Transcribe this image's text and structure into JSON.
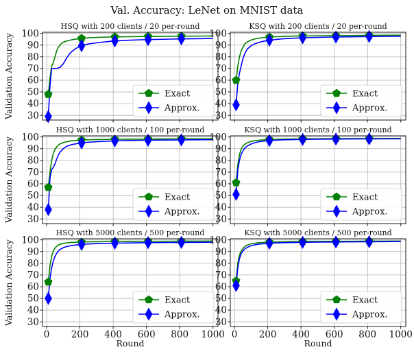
{
  "figure": {
    "title": "Val. Accuracy: LeNet on MNIST data"
  },
  "chart_data": [
    {
      "type": "line",
      "title": "HSQ with 200 clients / 20 per-round",
      "xlabel": "",
      "ylabel": "Validation Accuracy",
      "xlim": [
        -25,
        1030
      ],
      "ylim": [
        26,
        101
      ],
      "xticks": [],
      "yticks": [
        30,
        40,
        50,
        60,
        70,
        80,
        90,
        100
      ],
      "grid": true,
      "legend": "lower-right",
      "series": [
        {
          "name": "Exact",
          "color": "#008000",
          "marker": "pentagon",
          "markers_at": [
            10,
            210,
            410,
            610,
            810
          ],
          "x": [
            10,
            20,
            30,
            40,
            50,
            60,
            70,
            80,
            90,
            100,
            120,
            140,
            160,
            180,
            210,
            250,
            300,
            400,
            500,
            600,
            700,
            800,
            900,
            1000
          ],
          "y": [
            48,
            62,
            72,
            75,
            80,
            85,
            88,
            90,
            91.5,
            92.5,
            93.5,
            94.2,
            94.8,
            95.2,
            95.8,
            96.2,
            96.6,
            97.0,
            97.2,
            97.4,
            97.5,
            97.6,
            97.7,
            97.8
          ]
        },
        {
          "name": "Approx.",
          "color": "#0000ff",
          "marker": "diamond",
          "markers_at": [
            10,
            210,
            410,
            610,
            810
          ],
          "x": [
            10,
            20,
            30,
            40,
            50,
            60,
            70,
            80,
            100,
            120,
            140,
            160,
            180,
            210,
            250,
            300,
            400,
            500,
            600,
            700,
            800,
            900,
            1000
          ],
          "y": [
            29,
            55,
            70,
            70,
            70,
            70,
            70.5,
            71,
            74,
            79,
            83,
            85.5,
            87.5,
            89.5,
            91,
            92,
            93.5,
            94.2,
            94.7,
            95.0,
            95.3,
            95.5,
            95.7
          ]
        }
      ]
    },
    {
      "type": "line",
      "title": "KSQ with 200 clients / 20 per-round",
      "xlabel": "",
      "ylabel": "",
      "xlim": [
        -25,
        1030
      ],
      "ylim": [
        26,
        101
      ],
      "xticks": [],
      "yticks": [
        30,
        40,
        50,
        60,
        70,
        80,
        90,
        100
      ],
      "grid": true,
      "legend": "lower-right",
      "series": [
        {
          "name": "Exact",
          "color": "#008000",
          "marker": "pentagon",
          "markers_at": [
            10,
            210,
            410,
            610,
            810
          ],
          "x": [
            10,
            20,
            30,
            40,
            50,
            60,
            70,
            80,
            100,
            120,
            150,
            200,
            250,
            300,
            400,
            500,
            600,
            700,
            800,
            900,
            1000
          ],
          "y": [
            60,
            72,
            80,
            85,
            88,
            90.5,
            92,
            93,
            94.3,
            95.2,
            96.0,
            96.8,
            97.2,
            97.5,
            97.8,
            98.0,
            98.1,
            98.2,
            98.3,
            98.4,
            98.5
          ]
        },
        {
          "name": "Approx.",
          "color": "#0000ff",
          "marker": "diamond",
          "markers_at": [
            10,
            210,
            410,
            610,
            810
          ],
          "x": [
            10,
            20,
            30,
            40,
            50,
            60,
            70,
            80,
            100,
            120,
            150,
            200,
            250,
            300,
            400,
            500,
            600,
            700,
            800,
            900,
            1000
          ],
          "y": [
            39,
            58,
            66,
            72,
            78,
            82,
            85,
            87,
            89.5,
            91,
            92.5,
            94,
            94.8,
            95.5,
            96.2,
            96.6,
            96.9,
            97.1,
            97.3,
            97.5,
            97.6
          ]
        }
      ]
    },
    {
      "type": "line",
      "title": "HSQ with 1000 clients / 100 per-round",
      "xlabel": "",
      "ylabel": "Validation Accuracy",
      "xlim": [
        -25,
        1030
      ],
      "ylim": [
        26,
        101
      ],
      "xticks": [],
      "yticks": [
        30,
        40,
        50,
        60,
        70,
        80,
        90,
        100
      ],
      "grid": true,
      "legend": "lower-right",
      "series": [
        {
          "name": "Exact",
          "color": "#008000",
          "marker": "pentagon",
          "markers_at": [
            10,
            210,
            410,
            610,
            810
          ],
          "x": [
            10,
            20,
            30,
            40,
            50,
            60,
            70,
            80,
            100,
            120,
            150,
            200,
            250,
            300,
            400,
            500,
            600,
            700,
            800,
            900,
            1000
          ],
          "y": [
            57,
            70,
            80,
            86,
            89.5,
            91.5,
            93,
            94,
            95.2,
            96,
            96.7,
            97.3,
            97.6,
            97.8,
            98.0,
            98.1,
            98.2,
            98.3,
            98.4,
            98.4,
            98.5
          ]
        },
        {
          "name": "Approx.",
          "color": "#0000ff",
          "marker": "diamond",
          "markers_at": [
            10,
            210,
            410,
            610,
            810
          ],
          "x": [
            10,
            20,
            30,
            40,
            50,
            60,
            70,
            80,
            100,
            120,
            150,
            200,
            250,
            300,
            400,
            500,
            600,
            700,
            800,
            900,
            1000
          ],
          "y": [
            38,
            65,
            72,
            74,
            77,
            81,
            84.5,
            87,
            90,
            92,
            93.5,
            94.8,
            95.5,
            96,
            96.6,
            97,
            97.2,
            97.4,
            97.5,
            97.6,
            97.7
          ]
        }
      ]
    },
    {
      "type": "line",
      "title": "KSQ with 1000 clients / 100 per-round",
      "xlabel": "",
      "ylabel": "",
      "xlim": [
        -25,
        1030
      ],
      "ylim": [
        26,
        101
      ],
      "xticks": [],
      "yticks": [
        30,
        40,
        50,
        60,
        70,
        80,
        90,
        100
      ],
      "grid": true,
      "legend": "lower-right",
      "series": [
        {
          "name": "Exact",
          "color": "#008000",
          "marker": "pentagon",
          "markers_at": [
            10,
            210,
            410,
            610,
            810
          ],
          "x": [
            10,
            20,
            30,
            40,
            50,
            60,
            70,
            80,
            100,
            120,
            150,
            200,
            250,
            300,
            400,
            500,
            600,
            700,
            800,
            900,
            1000
          ],
          "y": [
            61,
            76,
            85,
            89.5,
            92,
            93.5,
            94.5,
            95.2,
            96.2,
            96.8,
            97.3,
            97.8,
            98.0,
            98.2,
            98.4,
            98.5,
            98.6,
            98.6,
            98.7,
            98.7,
            98.8
          ]
        },
        {
          "name": "Approx.",
          "color": "#0000ff",
          "marker": "diamond",
          "markers_at": [
            10,
            210,
            410,
            610,
            810
          ],
          "x": [
            10,
            20,
            30,
            40,
            50,
            60,
            70,
            80,
            100,
            120,
            150,
            200,
            250,
            300,
            400,
            500,
            600,
            700,
            800,
            900,
            1000
          ],
          "y": [
            51,
            72,
            80,
            85,
            88,
            90,
            91.5,
            92.5,
            94,
            95,
            96,
            96.9,
            97.3,
            97.6,
            97.9,
            98.1,
            98.2,
            98.3,
            98.4,
            98.4,
            98.5
          ]
        }
      ]
    },
    {
      "type": "line",
      "title": "HSQ with 5000 clients / 500 per-round",
      "xlabel": "Round",
      "ylabel": "Validation Accuracy",
      "xlim": [
        -25,
        1030
      ],
      "ylim": [
        26,
        101
      ],
      "xticks": [
        0,
        200,
        400,
        600,
        800,
        1000
      ],
      "yticks": [
        30,
        40,
        50,
        60,
        70,
        80,
        90,
        100
      ],
      "grid": true,
      "legend": "lower-right",
      "series": [
        {
          "name": "Exact",
          "color": "#008000",
          "marker": "pentagon",
          "markers_at": [
            10,
            210,
            410,
            610,
            810
          ],
          "x": [
            10,
            20,
            30,
            40,
            50,
            60,
            70,
            80,
            100,
            120,
            150,
            200,
            250,
            300,
            400,
            500,
            600,
            700,
            800,
            900,
            1000
          ],
          "y": [
            64,
            78,
            86,
            90.5,
            93,
            94.5,
            95.5,
            96.2,
            97,
            97.4,
            97.8,
            98.1,
            98.3,
            98.4,
            98.6,
            98.7,
            98.8,
            98.8,
            98.9,
            98.9,
            99
          ]
        },
        {
          "name": "Approx.",
          "color": "#0000ff",
          "marker": "diamond",
          "markers_at": [
            10,
            210,
            410,
            610,
            810
          ],
          "x": [
            10,
            20,
            30,
            40,
            50,
            60,
            70,
            80,
            100,
            120,
            150,
            200,
            250,
            300,
            400,
            500,
            600,
            700,
            800,
            900,
            1000
          ],
          "y": [
            50,
            67,
            76,
            82,
            86,
            88.5,
            90.5,
            91.8,
            93.3,
            94.3,
            95.2,
            96,
            96.5,
            96.8,
            97.2,
            97.4,
            97.6,
            97.7,
            97.8,
            97.9,
            98
          ]
        }
      ]
    },
    {
      "type": "line",
      "title": "KSQ with 5000 clients / 500 per-round",
      "xlabel": "Round",
      "ylabel": "",
      "xlim": [
        -25,
        1030
      ],
      "ylim": [
        26,
        101
      ],
      "xticks": [
        0,
        200,
        400,
        600,
        800,
        1000
      ],
      "yticks": [
        30,
        40,
        50,
        60,
        70,
        80,
        90,
        100
      ],
      "grid": true,
      "legend": "lower-right",
      "series": [
        {
          "name": "Exact",
          "color": "#008000",
          "marker": "pentagon",
          "markers_at": [
            10,
            210,
            410,
            610,
            810
          ],
          "x": [
            10,
            20,
            30,
            40,
            50,
            60,
            70,
            80,
            100,
            120,
            150,
            200,
            250,
            300,
            400,
            500,
            600,
            700,
            800,
            900,
            1000
          ],
          "y": [
            65,
            80,
            87,
            90.5,
            92.5,
            94,
            95,
            95.7,
            96.6,
            97.1,
            97.6,
            98,
            98.2,
            98.4,
            98.6,
            98.7,
            98.8,
            98.8,
            98.9,
            98.9,
            99
          ]
        },
        {
          "name": "Approx.",
          "color": "#0000ff",
          "marker": "diamond",
          "markers_at": [
            10,
            210,
            410,
            610,
            810
          ],
          "x": [
            10,
            20,
            30,
            40,
            50,
            60,
            70,
            80,
            100,
            120,
            150,
            200,
            250,
            300,
            400,
            500,
            600,
            700,
            800,
            900,
            1000
          ],
          "y": [
            61,
            76,
            84,
            88,
            90.5,
            92,
            93,
            93.8,
            95,
            95.7,
            96.4,
            97,
            97.4,
            97.6,
            97.9,
            98.1,
            98.2,
            98.3,
            98.4,
            98.5,
            98.6
          ]
        }
      ]
    }
  ]
}
